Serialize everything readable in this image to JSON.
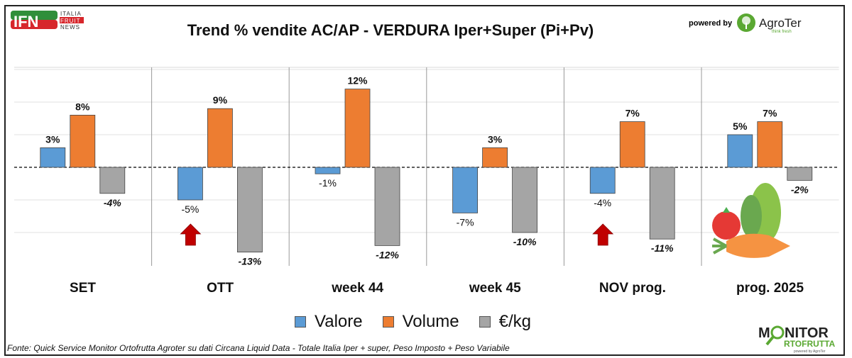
{
  "header": {
    "ifn_logo": "IFN ITALIA FRUIT NEWS",
    "powered_by": "powered by",
    "agroter_logo": "AgroTer think fresh",
    "monitor_logo": "MONITOR ORTOFRUTTA powered by AgroTer"
  },
  "chart_data": {
    "type": "bar",
    "title": "Trend % vendite AC/AP - VERDURA  Iper+Super (Pi+Pv)",
    "categories": [
      "SET",
      "OTT",
      "week 44",
      "week 45",
      "NOV prog.",
      "prog. 2025"
    ],
    "series": [
      {
        "name": "Valore",
        "color": "#5B9BD5",
        "values": [
          3,
          -5,
          -1,
          -7,
          -4,
          5
        ],
        "labels": [
          "3%",
          "-5%",
          "-1%",
          "-7%",
          "-4%",
          "5%"
        ]
      },
      {
        "name": "Volume",
        "color": "#ED7D31",
        "values": [
          8,
          9,
          12,
          3,
          7,
          7
        ],
        "labels": [
          "8%",
          "9%",
          "12%",
          "3%",
          "7%",
          "7%"
        ]
      },
      {
        "name": "€/kg",
        "color": "#A5A5A5",
        "values": [
          -4,
          -13,
          -12,
          -10,
          -11,
          -2
        ],
        "labels": [
          "-4%",
          "-13%",
          "-12%",
          "-10%",
          "-11%",
          "-2%"
        ]
      }
    ],
    "ylim": [
      -15,
      15
    ],
    "annotations": [
      "red up arrow under OTT Valore",
      "red up arrow under NOV prog. Valore"
    ],
    "legend": "bottom"
  },
  "source": "Fonte: Quick Service Monitor Ortofrutta Agroter su dati Circana Liquid Data - Totale Italia Iper + super, Peso Imposto + Peso Variabile"
}
